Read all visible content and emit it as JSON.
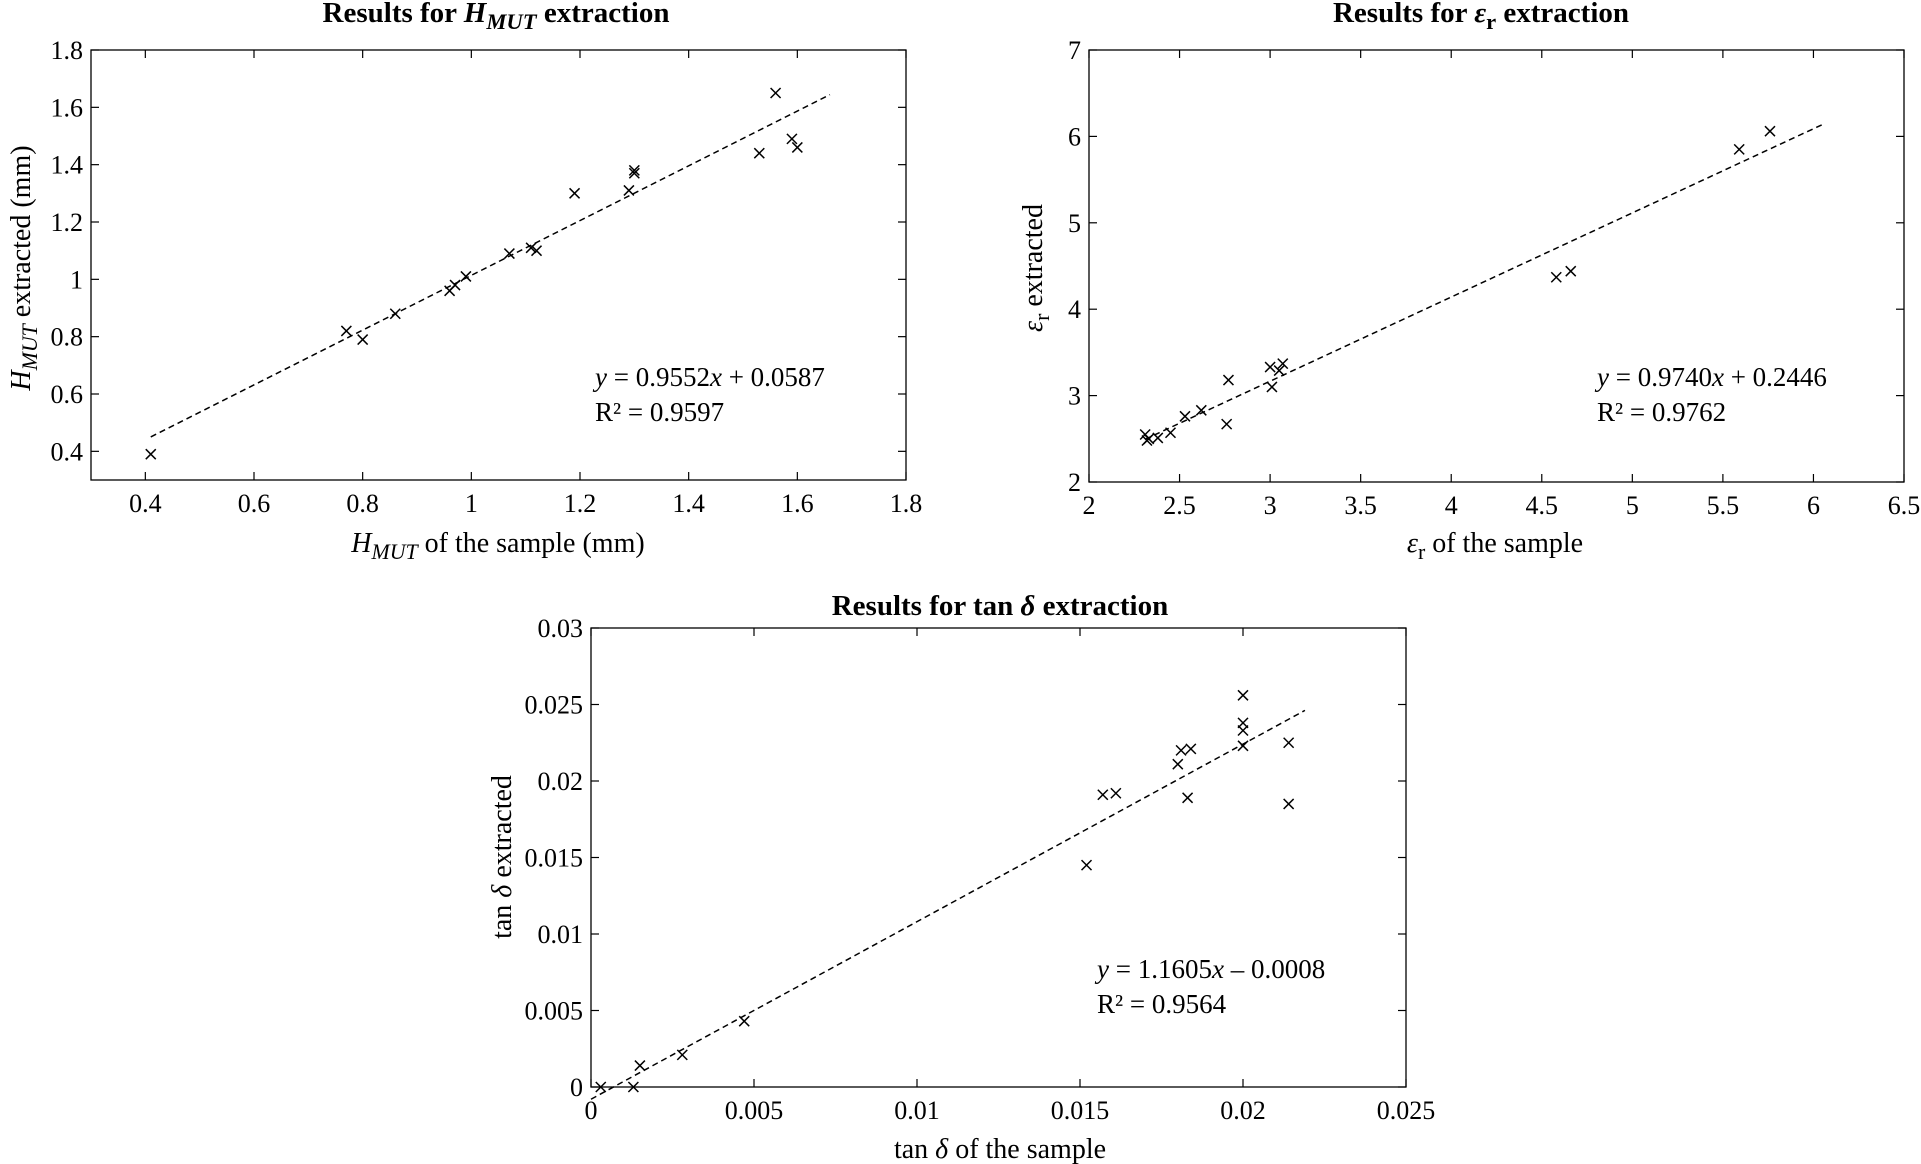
{
  "chart_data": [
    {
      "type": "scatter",
      "title": "Results for H<sub>MUT</sub> extraction",
      "title_parts": [
        {
          "text": "Results for ",
          "style": "bold"
        },
        {
          "text": "H",
          "style": "bold-italic"
        },
        {
          "text": "MUT",
          "style": "bold-italic-sub"
        },
        {
          "text": " extraction",
          "style": "bold"
        }
      ],
      "xlabel_parts": [
        {
          "text": "H",
          "style": "italic"
        },
        {
          "text": "MUT",
          "style": "italic-sub"
        },
        {
          "text": " of the sample (mm)",
          "style": "normal"
        }
      ],
      "ylabel_parts": [
        {
          "text": "H",
          "style": "italic"
        },
        {
          "text": "MUT",
          "style": "italic-sub"
        },
        {
          "text": " extracted (mm)",
          "style": "normal"
        }
      ],
      "xlim": [
        0.3,
        1.8
      ],
      "ylim": [
        0.3,
        1.8
      ],
      "xticks": [
        "0.4",
        "0.6",
        "0.8",
        "1",
        "1.2",
        "1.4",
        "1.6",
        "1.8"
      ],
      "xtick_values": [
        0.4,
        0.6,
        0.8,
        1.0,
        1.2,
        1.4,
        1.6,
        1.8
      ],
      "yticks": [
        "0.4",
        "0.6",
        "0.8",
        "1",
        "1.2",
        "1.4",
        "1.6",
        "1.8"
      ],
      "ytick_values": [
        0.4,
        0.6,
        0.8,
        1.0,
        1.2,
        1.4,
        1.6,
        1.8
      ],
      "marker": "x",
      "points": {
        "x": [
          0.41,
          0.77,
          0.8,
          0.86,
          0.96,
          0.97,
          0.99,
          1.07,
          1.11,
          1.12,
          1.19,
          1.29,
          1.3,
          1.3,
          1.53,
          1.56,
          1.59,
          1.6
        ],
        "y": [
          0.39,
          0.82,
          0.79,
          0.88,
          0.96,
          0.98,
          1.01,
          1.09,
          1.11,
          1.1,
          1.3,
          1.31,
          1.37,
          1.38,
          1.44,
          1.65,
          1.49,
          1.46
        ]
      },
      "trendline": {
        "slope": 0.9552,
        "intercept": 0.0587,
        "x_range": [
          0.41,
          1.66
        ]
      },
      "equation_parts": [
        {
          "text": "y",
          "style": "italic"
        },
        {
          "text": " = 0.9552",
          "style": "normal"
        },
        {
          "text": "x",
          "style": "italic"
        },
        {
          "text": " + 0.0587",
          "style": "normal"
        }
      ],
      "r2": "R² = 0.9597",
      "grid": false
    },
    {
      "type": "scatter",
      "title": "Results for ε<sub>r</sub> extraction",
      "title_parts": [
        {
          "text": "Results for ",
          "style": "bold"
        },
        {
          "text": "ε",
          "style": "bold-italic"
        },
        {
          "text": "r",
          "style": "bold-sub"
        },
        {
          "text": " extraction",
          "style": "bold"
        }
      ],
      "xlabel_parts": [
        {
          "text": "ε",
          "style": "italic"
        },
        {
          "text": "r",
          "style": "sub"
        },
        {
          "text": " of the sample",
          "style": "normal"
        }
      ],
      "ylabel_parts": [
        {
          "text": "ε",
          "style": "italic"
        },
        {
          "text": "r",
          "style": "sub"
        },
        {
          "text": " extracted",
          "style": "normal"
        }
      ],
      "xlim": [
        2,
        6.5
      ],
      "ylim": [
        2,
        7
      ],
      "xticks": [
        "2",
        "2.5",
        "3",
        "3.5",
        "4",
        "4.5",
        "5",
        "5.5",
        "6",
        "6.5"
      ],
      "xtick_values": [
        2,
        2.5,
        3,
        3.5,
        4,
        4.5,
        5,
        5.5,
        6,
        6.5
      ],
      "yticks": [
        "2",
        "3",
        "4",
        "5",
        "6",
        "7"
      ],
      "ytick_values": [
        2,
        3,
        4,
        5,
        6,
        7
      ],
      "marker": "x",
      "points": {
        "x": [
          2.31,
          2.32,
          2.33,
          2.38,
          2.45,
          2.53,
          2.62,
          2.76,
          2.77,
          3.0,
          3.01,
          3.05,
          3.07,
          4.58,
          4.66,
          5.59,
          5.76
        ],
        "y": [
          2.55,
          2.48,
          2.5,
          2.51,
          2.57,
          2.76,
          2.83,
          2.67,
          3.18,
          3.33,
          3.1,
          3.29,
          3.37,
          4.37,
          4.44,
          5.85,
          6.06
        ]
      },
      "trendline": {
        "slope": 0.974,
        "intercept": 0.2446,
        "x_range": [
          2.31,
          6.05
        ]
      },
      "equation_parts": [
        {
          "text": "y",
          "style": "italic"
        },
        {
          "text": " = 0.9740",
          "style": "normal"
        },
        {
          "text": "x",
          "style": "italic"
        },
        {
          "text": " + 0.2446",
          "style": "normal"
        }
      ],
      "r2": "R² = 0.9762",
      "grid": false
    },
    {
      "type": "scatter",
      "title": "Results for tan δ extraction",
      "title_parts": [
        {
          "text": "Results for tan ",
          "style": "bold"
        },
        {
          "text": "δ",
          "style": "bold-italic"
        },
        {
          "text": " extraction",
          "style": "bold"
        }
      ],
      "xlabel_parts": [
        {
          "text": "tan ",
          "style": "normal"
        },
        {
          "text": "δ",
          "style": "italic"
        },
        {
          "text": " of the sample",
          "style": "normal"
        }
      ],
      "ylabel_parts": [
        {
          "text": "tan ",
          "style": "normal"
        },
        {
          "text": "δ",
          "style": "italic"
        },
        {
          "text": " extracted",
          "style": "normal"
        }
      ],
      "xlim": [
        0,
        0.025
      ],
      "ylim": [
        0,
        0.03
      ],
      "xticks": [
        "0",
        "0.005",
        "0.01",
        "0.015",
        "0.02",
        "0.025"
      ],
      "xtick_values": [
        0,
        0.005,
        0.01,
        0.015,
        0.02,
        0.025
      ],
      "yticks": [
        "0",
        "0.005",
        "0.01",
        "0.015",
        "0.02",
        "0.025",
        "0.03"
      ],
      "ytick_values": [
        0,
        0.005,
        0.01,
        0.015,
        0.02,
        0.025,
        0.03
      ],
      "marker": "x",
      "points": {
        "x": [
          0.0003,
          0.0013,
          0.0015,
          0.0028,
          0.0047,
          0.0152,
          0.0157,
          0.0161,
          0.018,
          0.0181,
          0.0183,
          0.0184,
          0.02,
          0.02,
          0.02,
          0.02,
          0.0214,
          0.0214
        ],
        "y": [
          0.0,
          0.0,
          0.0014,
          0.0021,
          0.0043,
          0.0145,
          0.0191,
          0.0192,
          0.0211,
          0.022,
          0.0189,
          0.0221,
          0.0256,
          0.0238,
          0.0233,
          0.0223,
          0.0225,
          0.0185
        ]
      },
      "trendline": {
        "slope": 1.1605,
        "intercept": -0.0008,
        "x_range": [
          0,
          0.0219
        ]
      },
      "equation_parts": [
        {
          "text": "y",
          "style": "italic"
        },
        {
          "text": " = 1.1605",
          "style": "normal"
        },
        {
          "text": "x",
          "style": "italic"
        },
        {
          "text": " – 0.0008",
          "style": "normal"
        }
      ],
      "r2": "R² = 0.9564",
      "grid": false
    }
  ]
}
